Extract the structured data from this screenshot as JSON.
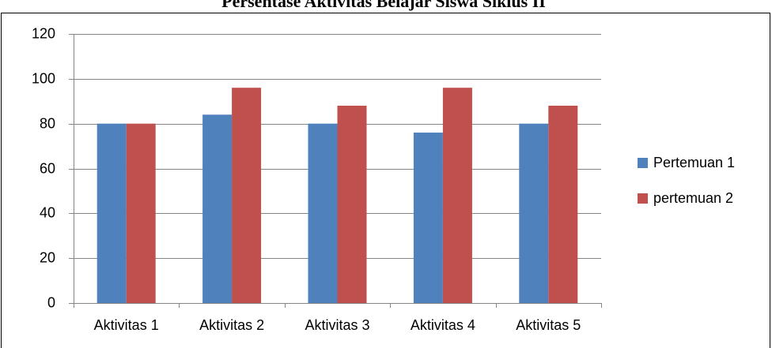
{
  "chart_data": {
    "type": "bar",
    "title": "Persentase Aktivitas Belajar Siswa Siklus II",
    "categories": [
      "Aktivitas 1",
      "Aktivitas 2",
      "Aktivitas 3",
      "Aktivitas 4",
      "Aktivitas 5"
    ],
    "series": [
      {
        "name": "Pertemuan 1",
        "color": "#4f81bd",
        "values": [
          80,
          84,
          80,
          76,
          80
        ]
      },
      {
        "name": "pertemuan 2",
        "color": "#c0504d",
        "values": [
          80,
          96,
          88,
          96,
          88
        ]
      }
    ],
    "ylim": [
      0,
      120
    ],
    "yticks": [
      0,
      20,
      40,
      60,
      80,
      100,
      120
    ],
    "grid": true,
    "legend": "right"
  }
}
